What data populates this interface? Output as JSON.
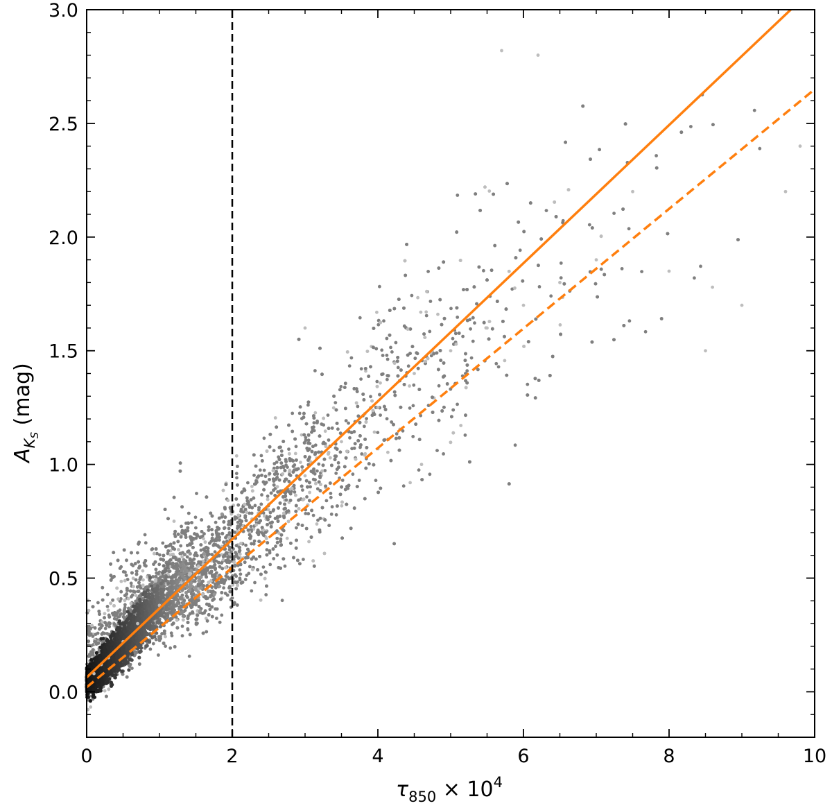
{
  "chart_data": {
    "type": "scatter",
    "xlabel": {
      "base": "τ",
      "sub": "850",
      "mid": " × 10",
      "sup": "4"
    },
    "ylabel": {
      "base": "A",
      "sub": "K",
      "subsub": "S",
      "suffix": " (mag)"
    },
    "xlim": [
      0,
      10
    ],
    "ylim": [
      -0.2,
      3.0
    ],
    "x_ticks": [
      0,
      2,
      4,
      6,
      8,
      10
    ],
    "x_tick_labels": [
      "0",
      "2",
      "4",
      "6",
      "8",
      "10"
    ],
    "y_ticks": [
      0.0,
      0.5,
      1.0,
      1.5,
      2.0,
      2.5,
      3.0
    ],
    "y_tick_labels": [
      "0.0",
      "0.5",
      "1.0",
      "1.5",
      "2.0",
      "2.5",
      "3.0"
    ],
    "x_minor_step": 0.5,
    "y_minor_step": 0.1,
    "grid": false,
    "point_color": "#7f7f7f",
    "dense_core_color": "#111111",
    "series": [
      {
        "style": "fit-line-solid",
        "color": "#ff7f0e",
        "x": [
          0,
          10
        ],
        "y": [
          0.063,
          3.1
        ]
      },
      {
        "style": "fit-line-dashed",
        "color": "#ff7f0e",
        "x": [
          0,
          10
        ],
        "y": [
          0.02,
          2.65
        ]
      },
      {
        "style": "threshold-line-dashed",
        "color": "#000000",
        "x": [
          2,
          2
        ],
        "y": [
          -0.2,
          3.0
        ]
      },
      {
        "style": "scatter",
        "color": "#7f7f7f",
        "description_points": [
          [
            0.1,
            0.08
          ],
          [
            0.2,
            0.12
          ],
          [
            0.3,
            0.15
          ],
          [
            0.5,
            0.22
          ],
          [
            0.7,
            0.3
          ],
          [
            1.0,
            0.38
          ],
          [
            1.3,
            0.48
          ],
          [
            1.6,
            0.56
          ],
          [
            2.0,
            0.65
          ],
          [
            2.5,
            0.8
          ],
          [
            3.0,
            0.95
          ],
          [
            3.5,
            1.1
          ],
          [
            4.0,
            1.25
          ],
          [
            4.5,
            1.4
          ],
          [
            5.0,
            1.5
          ],
          [
            5.5,
            1.6
          ],
          [
            6.0,
            1.7
          ],
          [
            6.5,
            1.8
          ],
          [
            7.0,
            1.9
          ],
          [
            8.0,
            1.85
          ],
          [
            9.0,
            1.7
          ],
          [
            9.8,
            2.4
          ],
          [
            5.7,
            2.82
          ],
          [
            6.2,
            2.8
          ],
          [
            3.0,
            1.6
          ],
          [
            1.2,
            0.75
          ],
          [
            9.6,
            2.2
          ],
          [
            7.5,
            2.2
          ],
          [
            8.5,
            1.5
          ],
          [
            4.6,
            1.0
          ]
        ]
      }
    ]
  }
}
